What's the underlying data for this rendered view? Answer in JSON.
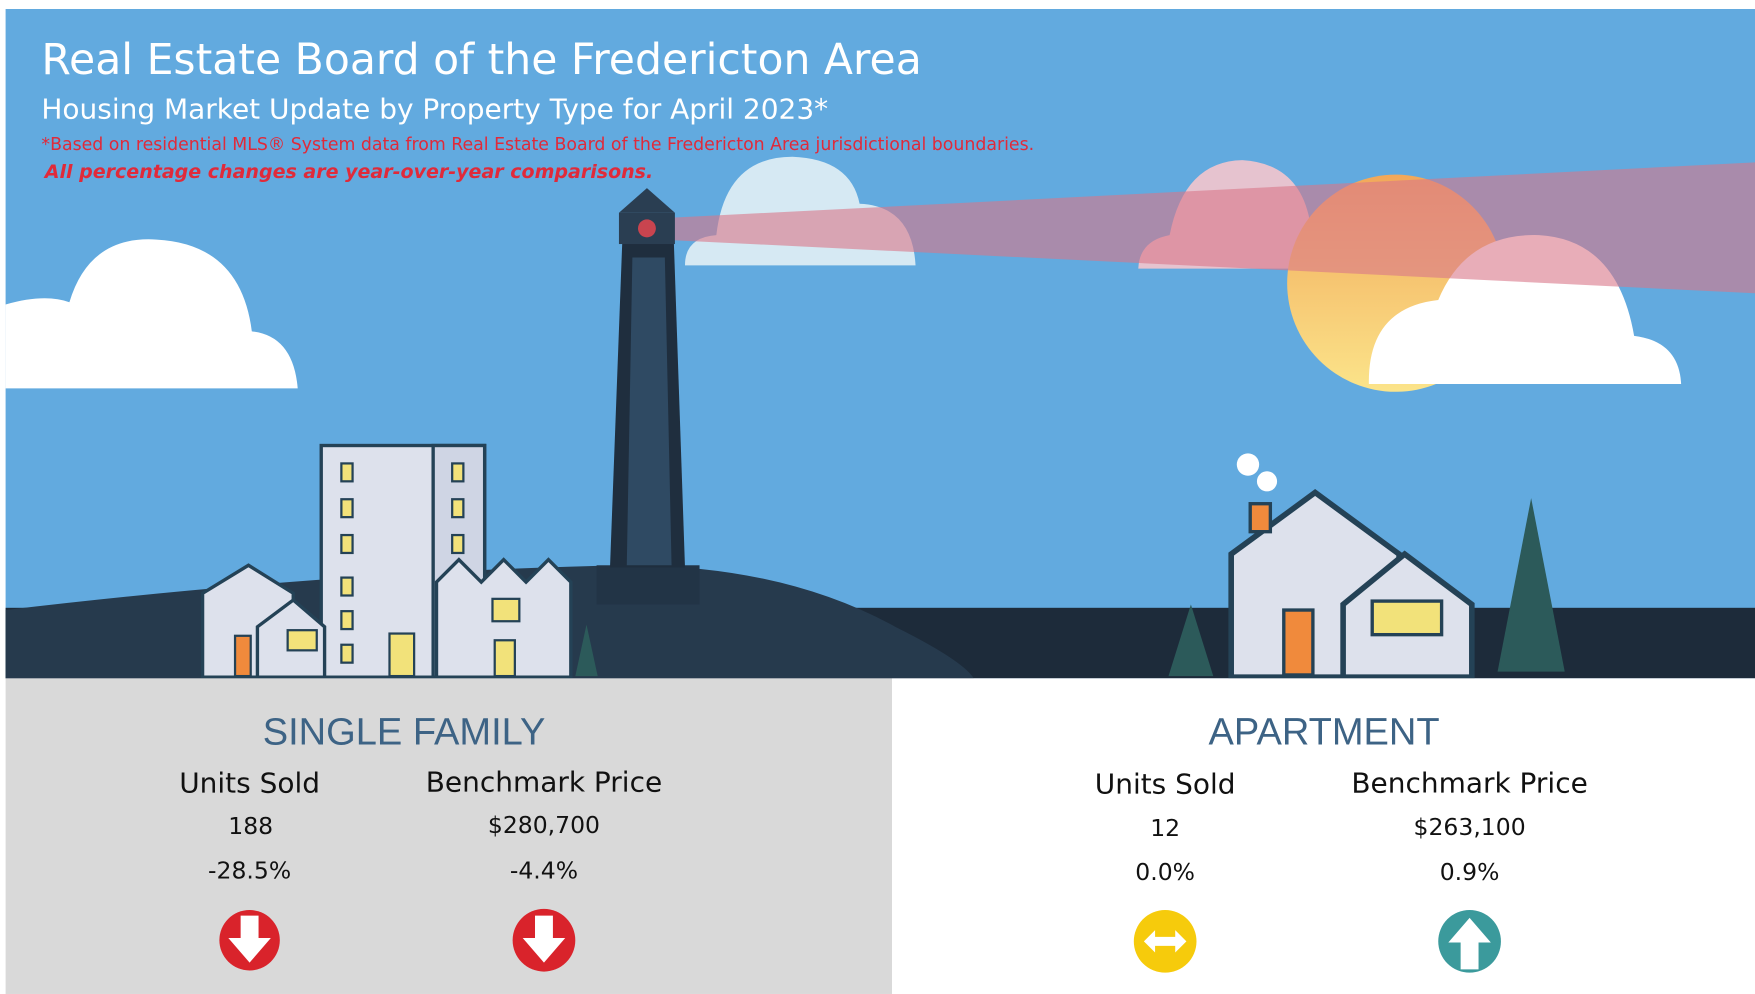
{
  "header": {
    "title": "Real Estate Board of the Fredericton Area",
    "subtitle": "Housing Market Update by Property Type for April 2023*",
    "footnote": "*Based on residential MLS® System data from Real Estate Board of the Fredericton Area jurisdictional boundaries.",
    "note": "All percentage changes are year-over-year comparisons."
  },
  "sections": [
    {
      "title": "SINGLE FAMILY",
      "metrics": [
        {
          "label": "Units Sold",
          "value": "188",
          "change": "-28.5%"
        },
        {
          "label": "Benchmark Price",
          "value": "$280,700",
          "change": "-4.4%"
        }
      ]
    },
    {
      "title": "APARTMENT",
      "metrics": [
        {
          "label": "Units Sold",
          "value": "12",
          "change": "0.0%"
        },
        {
          "label": "Benchmark Price",
          "value": "$263,100",
          "change": "0.9%"
        }
      ]
    }
  ]
}
